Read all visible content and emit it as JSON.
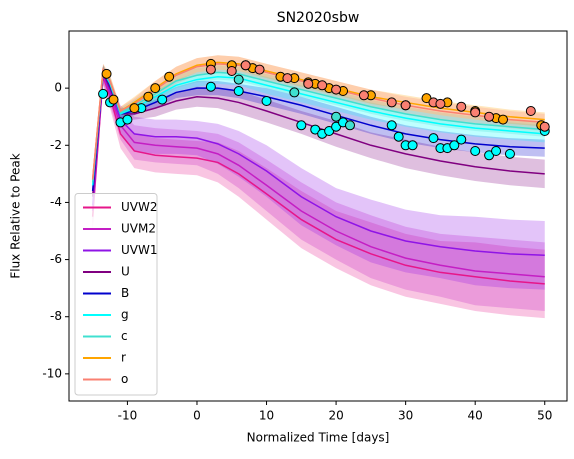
{
  "chart_data": {
    "type": "line",
    "title": "SN2020sbw",
    "x_label": "Normalized Time [days]",
    "y_label": "Flux Relative to Peak",
    "x": [
      -15,
      -13.5,
      -12.5,
      -11,
      -9,
      -6,
      -3,
      0,
      3,
      6,
      10,
      15,
      20,
      25,
      30,
      35,
      40,
      45,
      50
    ],
    "xlim": [
      -18.4,
      53.2
    ],
    "xticks": [
      -10,
      0,
      10,
      20,
      30,
      40,
      50
    ],
    "ylim": [
      -10.95,
      2.0
    ],
    "yticks": [
      0,
      -2,
      -4,
      -6,
      -8,
      -10
    ],
    "legend": "lower left",
    "series": [
      {
        "name": "UVW2",
        "color": "#e6168a",
        "values": [
          -4.5,
          0.4,
          -0.3,
          -1.6,
          -2.2,
          -2.35,
          -2.4,
          -2.45,
          -2.6,
          -3.0,
          -3.7,
          -4.6,
          -5.3,
          -5.8,
          -6.2,
          -6.45,
          -6.6,
          -6.75,
          -6.85
        ],
        "lower": [
          -5.0,
          0.1,
          -0.7,
          -2.1,
          -2.8,
          -2.95,
          -3.0,
          -3.05,
          -3.3,
          -3.8,
          -4.6,
          -5.6,
          -6.3,
          -6.9,
          -7.3,
          -7.55,
          -7.8,
          -7.95,
          -8.05
        ],
        "upper": [
          -4.0,
          0.7,
          0.1,
          -1.1,
          -1.6,
          -1.75,
          -1.8,
          -1.85,
          -1.9,
          -2.2,
          -2.8,
          -3.6,
          -4.3,
          -4.7,
          -5.1,
          -5.35,
          -5.4,
          -5.55,
          -5.65
        ]
      },
      {
        "name": "UVM2",
        "color": "#c41ec4",
        "values": [
          -4.3,
          0.45,
          -0.2,
          -1.3,
          -1.9,
          -2.0,
          -2.05,
          -2.1,
          -2.3,
          -2.7,
          -3.4,
          -4.3,
          -5.0,
          -5.55,
          -5.95,
          -6.2,
          -6.4,
          -6.5,
          -6.6
        ],
        "lower": [
          -4.8,
          0.15,
          -0.6,
          -1.8,
          -2.5,
          -2.6,
          -2.65,
          -2.7,
          -3.0,
          -3.5,
          -4.3,
          -5.3,
          -6.0,
          -6.65,
          -7.05,
          -7.3,
          -7.6,
          -7.7,
          -7.8
        ],
        "upper": [
          -3.8,
          0.75,
          0.2,
          -0.8,
          -1.3,
          -1.4,
          -1.45,
          -1.5,
          -1.6,
          -1.9,
          -2.5,
          -3.3,
          -4.0,
          -4.45,
          -4.85,
          -5.1,
          -5.2,
          -5.3,
          -5.4
        ]
      },
      {
        "name": "UVW1",
        "color": "#8f14e6",
        "values": [
          -4.1,
          0.5,
          -0.1,
          -1.1,
          -1.6,
          -1.7,
          -1.7,
          -1.75,
          -1.95,
          -2.3,
          -2.9,
          -3.8,
          -4.5,
          -5.0,
          -5.35,
          -5.55,
          -5.7,
          -5.8,
          -5.85
        ],
        "lower": [
          -4.6,
          0.2,
          -0.5,
          -1.6,
          -2.2,
          -2.3,
          -2.3,
          -2.35,
          -2.65,
          -3.1,
          -3.8,
          -4.8,
          -5.5,
          -6.1,
          -6.45,
          -6.65,
          -6.9,
          -7.0,
          -7.05
        ],
        "upper": [
          -3.6,
          0.8,
          0.3,
          -0.6,
          -1.0,
          -1.1,
          -1.1,
          -1.15,
          -1.25,
          -1.5,
          -2.0,
          -2.8,
          -3.5,
          -3.9,
          -4.25,
          -4.45,
          -4.5,
          -4.6,
          -4.65
        ]
      },
      {
        "name": "U",
        "color": "#800080",
        "values": [
          -3.8,
          0.55,
          0.0,
          -0.9,
          -0.9,
          -0.7,
          -0.45,
          -0.3,
          -0.35,
          -0.5,
          -0.8,
          -1.2,
          -1.6,
          -2.0,
          -2.3,
          -2.55,
          -2.75,
          -2.9,
          -3.0
        ],
        "lower": [
          -4.2,
          0.35,
          -0.2,
          -1.1,
          -1.1,
          -1.0,
          -0.75,
          -0.65,
          -0.7,
          -0.9,
          -1.2,
          -1.6,
          -2.05,
          -2.45,
          -2.8,
          -3.05,
          -3.25,
          -3.4,
          -3.5
        ],
        "upper": [
          -3.4,
          0.75,
          0.2,
          -0.7,
          -0.7,
          -0.4,
          -0.15,
          0.05,
          0.0,
          -0.1,
          -0.4,
          -0.8,
          -1.15,
          -1.55,
          -1.8,
          -2.05,
          -2.25,
          -2.4,
          -2.5
        ]
      },
      {
        "name": "B",
        "color": "#0000cd",
        "values": [
          -3.6,
          0.6,
          0.1,
          -0.9,
          -0.8,
          -0.5,
          -0.15,
          0.0,
          0.0,
          -0.1,
          -0.3,
          -0.6,
          -0.95,
          -1.3,
          -1.6,
          -1.8,
          -1.95,
          -2.05,
          -2.1
        ],
        "lower": [
          -3.9,
          0.4,
          -0.1,
          -1.05,
          -0.95,
          -0.7,
          -0.35,
          -0.25,
          -0.25,
          -0.35,
          -0.6,
          -0.9,
          -1.25,
          -1.6,
          -1.9,
          -2.1,
          -2.25,
          -2.35,
          -2.4
        ],
        "upper": [
          -3.3,
          0.8,
          0.3,
          -0.75,
          -0.65,
          -0.3,
          0.05,
          0.25,
          0.25,
          0.15,
          0.0,
          -0.3,
          -0.65,
          -1.0,
          -1.3,
          -1.5,
          -1.65,
          -1.75,
          -1.8
        ]
      },
      {
        "name": "g",
        "color": "#00ffff",
        "values": [
          -3.4,
          0.6,
          0.15,
          -0.9,
          -0.7,
          -0.3,
          0.1,
          0.3,
          0.4,
          0.35,
          0.1,
          -0.2,
          -0.5,
          -0.8,
          -1.05,
          -1.25,
          -1.4,
          -1.5,
          -1.6
        ],
        "lower": [
          -3.7,
          0.4,
          -0.05,
          -1.05,
          -0.85,
          -0.5,
          -0.1,
          0.05,
          0.15,
          0.1,
          -0.2,
          -0.5,
          -0.8,
          -1.1,
          -1.35,
          -1.55,
          -1.7,
          -1.8,
          -1.9
        ],
        "upper": [
          -3.1,
          0.8,
          0.35,
          -0.75,
          -0.55,
          -0.1,
          0.3,
          0.55,
          0.65,
          0.6,
          0.4,
          0.1,
          -0.2,
          -0.5,
          -0.75,
          -0.95,
          -1.1,
          -1.2,
          -1.3
        ],
        "points_x": [
          -13.5,
          -12.5,
          -11,
          -10,
          -8,
          -5,
          2,
          6,
          10,
          15,
          17,
          18,
          19,
          20,
          21,
          28,
          29,
          30,
          31,
          34,
          35,
          36,
          37,
          38,
          40,
          42,
          43,
          45,
          50
        ],
        "points_y": [
          -0.2,
          -0.5,
          -1.2,
          -1.1,
          -0.7,
          -0.4,
          0.05,
          -0.1,
          -0.45,
          -1.3,
          -1.45,
          -1.6,
          -1.5,
          -1.35,
          -1.2,
          -1.3,
          -1.7,
          -2.0,
          -2.0,
          -1.75,
          -2.1,
          -2.1,
          -2.0,
          -1.8,
          -2.2,
          -2.35,
          -2.2,
          -2.3,
          -1.5
        ]
      },
      {
        "name": "c",
        "color": "#40e0d0",
        "values": [
          -3.3,
          0.6,
          0.2,
          -0.85,
          -0.6,
          -0.2,
          0.25,
          0.45,
          0.55,
          0.5,
          0.25,
          -0.05,
          -0.35,
          -0.65,
          -0.9,
          -1.1,
          -1.25,
          -1.35,
          -1.45
        ],
        "lower": [
          -3.55,
          0.4,
          0.0,
          -1.0,
          -0.8,
          -0.45,
          0.0,
          0.2,
          0.3,
          0.25,
          0.0,
          -0.3,
          -0.6,
          -0.9,
          -1.15,
          -1.35,
          -1.5,
          -1.6,
          -1.7
        ],
        "upper": [
          -3.05,
          0.8,
          0.4,
          -0.7,
          -0.4,
          0.05,
          0.5,
          0.7,
          0.8,
          0.75,
          0.5,
          0.2,
          -0.1,
          -0.4,
          -0.65,
          -0.85,
          -1.0,
          -1.1,
          -1.2
        ],
        "points_x": [
          6,
          14,
          20,
          22
        ],
        "points_y": [
          0.3,
          -0.15,
          -1.0,
          -1.3
        ]
      },
      {
        "name": "r",
        "color": "#ffa500",
        "values": [
          -3.2,
          0.65,
          0.25,
          -0.8,
          -0.5,
          0.0,
          0.5,
          0.8,
          0.9,
          0.85,
          0.6,
          0.3,
          0.0,
          -0.3,
          -0.5,
          -0.7,
          -0.85,
          -1.0,
          -1.1
        ],
        "lower": [
          -3.45,
          0.45,
          0.05,
          -0.95,
          -0.7,
          -0.25,
          0.25,
          0.55,
          0.65,
          0.6,
          0.35,
          0.05,
          -0.25,
          -0.55,
          -0.75,
          -0.95,
          -1.1,
          -1.25,
          -1.35
        ],
        "upper": [
          -2.95,
          0.85,
          0.45,
          -0.65,
          -0.3,
          0.25,
          0.75,
          1.05,
          1.15,
          1.1,
          0.85,
          0.55,
          0.25,
          -0.05,
          -0.25,
          -0.45,
          -0.6,
          -0.75,
          -0.85
        ],
        "points_x": [
          -13,
          -12,
          -9,
          -7,
          -6,
          -4,
          2,
          5,
          7,
          8,
          12,
          14,
          16,
          17,
          19,
          21,
          25,
          30,
          33,
          36,
          40,
          43,
          44,
          49.5
        ],
        "points_y": [
          0.5,
          -0.4,
          -0.7,
          -0.3,
          0.0,
          0.4,
          0.85,
          0.8,
          0.8,
          0.7,
          0.4,
          0.35,
          0.2,
          0.15,
          0.0,
          -0.1,
          -0.25,
          -0.6,
          -0.35,
          -0.5,
          -0.8,
          -1.05,
          -1.1,
          -1.3
        ]
      },
      {
        "name": "o",
        "color": "#fa8072",
        "values": [
          -3.2,
          0.65,
          0.25,
          -0.8,
          -0.55,
          -0.05,
          0.45,
          0.75,
          0.85,
          0.8,
          0.55,
          0.25,
          -0.05,
          -0.35,
          -0.6,
          -0.8,
          -0.95,
          -1.1,
          -1.2
        ],
        "lower": [
          -3.5,
          0.45,
          0.05,
          -0.95,
          -0.75,
          -0.35,
          0.15,
          0.45,
          0.55,
          0.5,
          0.25,
          -0.05,
          -0.35,
          -0.65,
          -0.9,
          -1.1,
          -1.25,
          -1.4,
          -1.5
        ],
        "upper": [
          -2.9,
          0.85,
          0.45,
          -0.65,
          -0.35,
          0.25,
          0.75,
          1.05,
          1.15,
          1.1,
          0.85,
          0.55,
          0.25,
          -0.05,
          -0.3,
          -0.5,
          -0.65,
          -0.8,
          -0.9
        ],
        "points_x": [
          2,
          5,
          7,
          9,
          13,
          16,
          18,
          20,
          24,
          28,
          30,
          34,
          35,
          38,
          40,
          42,
          48,
          50
        ],
        "points_y": [
          0.65,
          0.6,
          0.8,
          0.65,
          0.35,
          0.15,
          0.1,
          -0.05,
          -0.25,
          -0.5,
          -0.6,
          -0.5,
          -0.55,
          -0.65,
          -0.85,
          -1.0,
          -0.8,
          -1.35
        ]
      }
    ]
  }
}
